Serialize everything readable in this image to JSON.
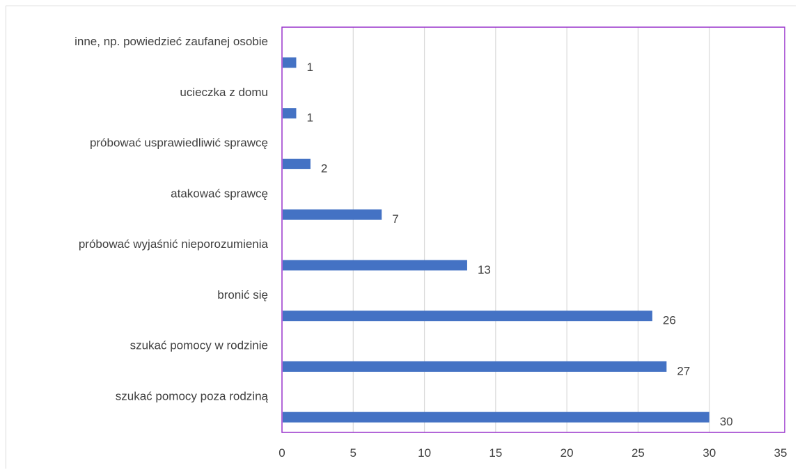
{
  "chart_data": {
    "type": "bar",
    "orientation": "horizontal",
    "categories": [
      "szukać pomocy poza rodziną",
      "szukać pomocy w rodzinie",
      "bronić się",
      "próbować wyjaśnić nieporozumienia",
      "atakować sprawcę",
      "próbować usprawiedliwić sprawcę",
      "ucieczka z domu",
      "inne, np. powiedzieć zaufanej osobie"
    ],
    "values": [
      30,
      27,
      26,
      13,
      7,
      2,
      1,
      1
    ],
    "data_labels": [
      "30",
      "27",
      "26",
      "13",
      "7",
      "2",
      "1",
      "1"
    ],
    "xlim": [
      0,
      35
    ],
    "xticks": [
      "0",
      "5",
      "10",
      "15",
      "20",
      "25",
      "30",
      "35"
    ],
    "grid": "vertical",
    "legend": "none",
    "title": "",
    "xlabel": "",
    "ylabel": "",
    "colors": {
      "bar": "#4472c4",
      "gridline": "#d9d9d9",
      "plot_border": "#9933cc",
      "text": "#404040"
    }
  }
}
